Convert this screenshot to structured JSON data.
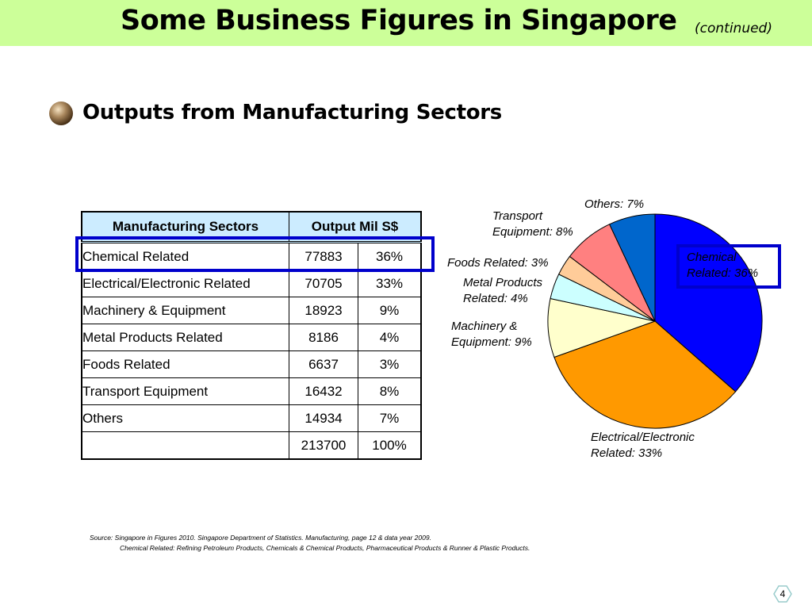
{
  "slide": {
    "title": "Some Business Figures in Singapore",
    "title_suffix": "(continued)",
    "heading": "Outputs from Manufacturing Sectors",
    "page_number": "4",
    "bullet_icon": "bronze-sphere-icon",
    "title_bar_color": "#ccff99",
    "highlight_color": "#0000cc"
  },
  "table": {
    "headers": [
      "Manufacturing Sectors",
      "Output Mil S$"
    ],
    "rows": [
      {
        "sector": "Chemical Related",
        "output": "77883",
        "percent": "36%"
      },
      {
        "sector": "Electrical/Electronic Related",
        "output": "70705",
        "percent": "33%"
      },
      {
        "sector": "Machinery & Equipment",
        "output": "18923",
        "percent": "9%"
      },
      {
        "sector": "Metal Products Related",
        "output": "8186",
        "percent": "4%"
      },
      {
        "sector": "Foods Related",
        "output": "6637",
        "percent": "3%"
      },
      {
        "sector": "Transport Equipment",
        "output": "16432",
        "percent": "8%"
      },
      {
        "sector": "Others",
        "output": "14934",
        "percent": "7%"
      }
    ],
    "total": {
      "output": "213700",
      "percent": "100%"
    },
    "header_color": "#ccecff"
  },
  "chart_data": {
    "type": "pie",
    "title": "",
    "slices": [
      {
        "label_line1": "Chemical",
        "label_line2": "Related: 36%",
        "value": 77883,
        "color": "#0000ff"
      },
      {
        "label_line1": "Electrical/Electronic",
        "label_line2": "Related: 33%",
        "value": 70705,
        "color": "#ff9900"
      },
      {
        "label_line1": "Machinery &",
        "label_line2": "Equipment: 9%",
        "value": 18923,
        "color": "#ffffcc"
      },
      {
        "label_line1": "Metal Products",
        "label_line2": "Related: 4%",
        "value": 8186,
        "color": "#ccffff"
      },
      {
        "label_line1": "Foods Related: 3%",
        "label_line2": "",
        "value": 6637,
        "color": "#ffcc99"
      },
      {
        "label_line1": "Transport",
        "label_line2": "Equipment: 8%",
        "value": 16432,
        "color": "#ff8080"
      },
      {
        "label_line1": "Others: 7%",
        "label_line2": "",
        "value": 14934,
        "color": "#0066cc"
      }
    ],
    "start": "12 o'clock",
    "direction": "clockwise"
  },
  "source": {
    "line1": "Source: Singapore in Figures 2010. Singapore Department of Statistics. Manufacturing, page 12 & data year 2009.",
    "line2": "Chemical Related: Refining Petroleum Products, Chemicals & Chemical Products, Pharmaceutical Products & Runner & Plastic Products."
  }
}
